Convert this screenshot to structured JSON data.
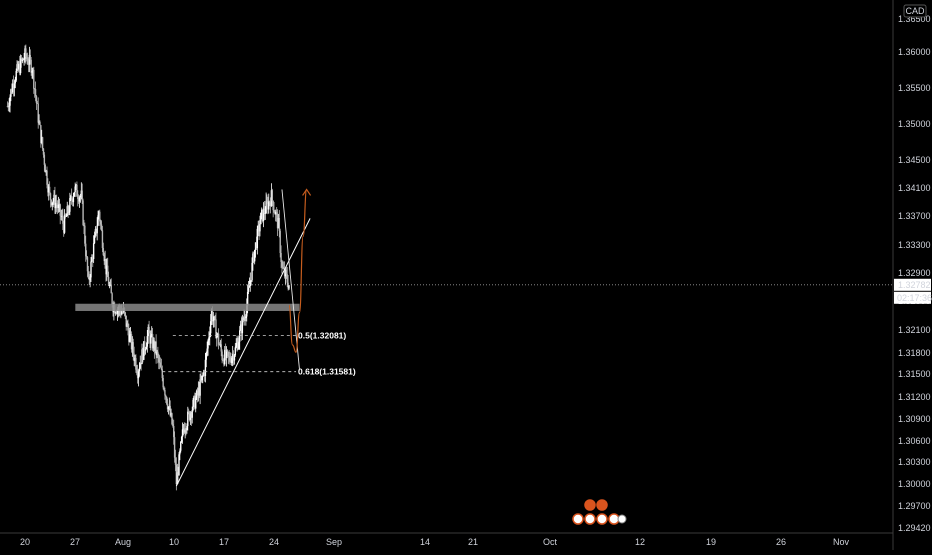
{
  "chart_data": {
    "type": "candlestick",
    "title": "",
    "xlabel": "",
    "ylabel": "",
    "currency_label": "CAD",
    "x_tick_labels": [
      "20",
      "27",
      "Aug",
      "10",
      "17",
      "24",
      "Sep",
      "14",
      "21",
      "Oct",
      "12",
      "19",
      "26",
      "Nov"
    ],
    "y_tick_labels": [
      "1.36500",
      "1.36000",
      "1.35500",
      "1.35000",
      "1.34500",
      "1.34100",
      "1.33700",
      "1.33300",
      "1.32900",
      "1.32500",
      "1.32100",
      "1.31800",
      "1.31500",
      "1.31200",
      "1.30900",
      "1.30600",
      "1.30300",
      "1.30000",
      "1.29700",
      "1.29420"
    ],
    "ylim": [
      1.2942,
      1.3665
    ],
    "last_price": {
      "label": "1.32782",
      "value": 1.32782
    },
    "countdown": "02:17:36",
    "price_path": [
      {
        "x": "Jul 15",
        "y": 1.3525
      },
      {
        "x": "Jul 17",
        "y": 1.3565
      },
      {
        "x": "Jul 20",
        "y": 1.3595
      },
      {
        "x": "Jul 22",
        "y": 1.358
      },
      {
        "x": "Jul 24",
        "y": 1.35
      },
      {
        "x": "Jul 27",
        "y": 1.34
      },
      {
        "x": "Jul 29",
        "y": 1.339
      },
      {
        "x": "Jul 31",
        "y": 1.336
      },
      {
        "x": "Aug 3",
        "y": 1.341
      },
      {
        "x": "Aug 5",
        "y": 1.34
      },
      {
        "x": "Aug 7",
        "y": 1.328
      },
      {
        "x": "Aug 10",
        "y": 1.338
      },
      {
        "x": "Aug 12",
        "y": 1.33
      },
      {
        "x": "Aug 14",
        "y": 1.325
      },
      {
        "x": "Aug 17",
        "y": 1.324
      },
      {
        "x": "Aug 19",
        "y": 1.32
      },
      {
        "x": "Aug 21",
        "y": 1.316
      },
      {
        "x": "Aug 24",
        "y": 1.321
      },
      {
        "x": "Aug 26",
        "y": 1.319
      },
      {
        "x": "Aug 28",
        "y": 1.315
      },
      {
        "x": "Aug 31",
        "y": 1.308
      },
      {
        "x": "Sep 1",
        "y": 1.3005
      },
      {
        "x": "Sep 3",
        "y": 1.308
      },
      {
        "x": "Sep 7",
        "y": 1.3125
      },
      {
        "x": "Sep 9",
        "y": 1.316
      },
      {
        "x": "Sep 11",
        "y": 1.324
      },
      {
        "x": "Sep 14",
        "y": 1.318
      },
      {
        "x": "Sep 16",
        "y": 1.3175
      },
      {
        "x": "Sep 18",
        "y": 1.319
      },
      {
        "x": "Sep 21",
        "y": 1.325
      },
      {
        "x": "Sep 23",
        "y": 1.332
      },
      {
        "x": "Sep 25",
        "y": 1.337
      },
      {
        "x": "Sep 28",
        "y": 1.34
      },
      {
        "x": "Sep 30",
        "y": 1.336
      },
      {
        "x": "Oct 1",
        "y": 1.33
      },
      {
        "x": "Oct 2",
        "y": 1.329
      },
      {
        "x": "Oct 3",
        "y": 1.3278
      }
    ],
    "resistance_zone": {
      "y_low": 1.3242,
      "y_high": 1.3252,
      "x_start": "Aug 5",
      "x_end": "Oct 6"
    },
    "trendline": {
      "from": {
        "x": "Sep 1",
        "y": 1.3
      },
      "to": {
        "x": "Oct 9",
        "y": 1.337
      }
    },
    "fib_levels": [
      {
        "label": "0.5(1.32081)",
        "value": 1.32081,
        "x_start": "Aug 31",
        "x_end": "Oct 5"
      },
      {
        "label": "0.618(1.31581)",
        "value": 1.31581,
        "x_start": "Aug 28",
        "x_end": "Oct 5"
      }
    ],
    "projection_down": {
      "from": {
        "x": "Oct 1",
        "y": 1.341
      },
      "to": {
        "x": "Oct 6",
        "y": 1.316
      }
    },
    "projection_path": [
      {
        "x": "Oct 3",
        "y": 1.325
      },
      {
        "x": "Oct 4",
        "y": 1.3195
      },
      {
        "x": "Oct 5",
        "y": 1.3185
      },
      {
        "x": "Oct 6",
        "y": 1.324
      },
      {
        "x": "Oct 7",
        "y": 1.3345
      },
      {
        "x": "Oct 8",
        "y": 1.341
      }
    ],
    "colors": {
      "background": "#000000",
      "text": "#d1d4dc",
      "projection": "#c65d1e",
      "zone": "#8a8a8a",
      "lines": "#ffffff"
    },
    "legend": "none",
    "grid": false
  }
}
